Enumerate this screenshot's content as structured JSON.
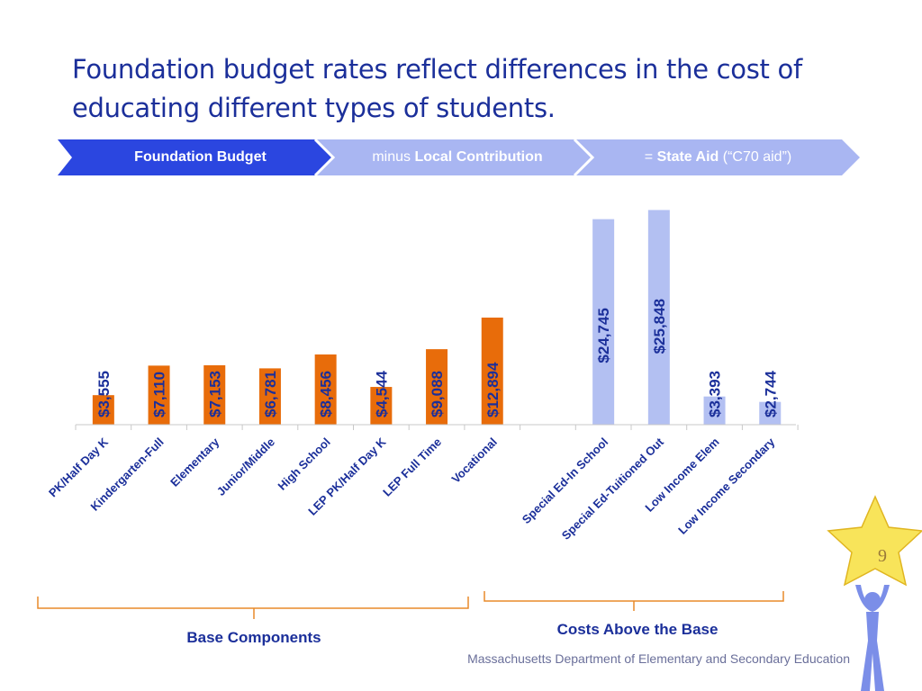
{
  "title": "Foundation budget rates reflect differences in the cost of educating different types of students.",
  "banner": {
    "step1": {
      "bold": "Foundation Budget"
    },
    "step2": {
      "prefix": "minus ",
      "bold": "Local Contribution"
    },
    "step3": {
      "prefix": "= ",
      "bold": "State Aid",
      "suffix": " (“C70 aid”)"
    },
    "colors": {
      "dark": "#2b46e0",
      "light": "#a9b6f2"
    }
  },
  "chart_data": {
    "type": "bar",
    "categories": [
      "PK/Half Day K",
      "Kindergarten-Full",
      "Elementary",
      "Junior/Middle",
      "High School",
      "LEP PK/Half Day K",
      "LEP Full Time",
      "Vocational",
      "",
      "Special Ed-In School",
      "Special Ed-Tuitioned Out",
      "Low Income Elem",
      "Low Income Secondary"
    ],
    "values": [
      3555,
      7110,
      7153,
      6781,
      8456,
      4544,
      9088,
      12894,
      null,
      24745,
      25848,
      3393,
      2744
    ],
    "data_labels": [
      "$3,555",
      "$7,110",
      "$7,153",
      "$6,781",
      "$8,456",
      "$4,544",
      "$9,088",
      "$12,894",
      "",
      "$24,745",
      "$25,848",
      "$3,393",
      "$2,744"
    ],
    "groups": [
      {
        "name": "Base Components",
        "from": 0,
        "to": 7,
        "color": "#e86c0a"
      },
      {
        "name": "Costs Above the Base",
        "from": 9,
        "to": 12,
        "color": "#b3c0f2"
      }
    ],
    "ylim": [
      0,
      26000
    ],
    "grid": false,
    "legend": "none",
    "label_colors": {
      "base": "#1b2f9a",
      "above": "#1b2f9a"
    }
  },
  "brace_labels": {
    "base": "Base Components",
    "above": "Costs Above the Base"
  },
  "footer": "Massachusetts Department of Elementary and Secondary Education",
  "page_number": "9",
  "icons": {
    "mascot": "star-person-icon"
  }
}
